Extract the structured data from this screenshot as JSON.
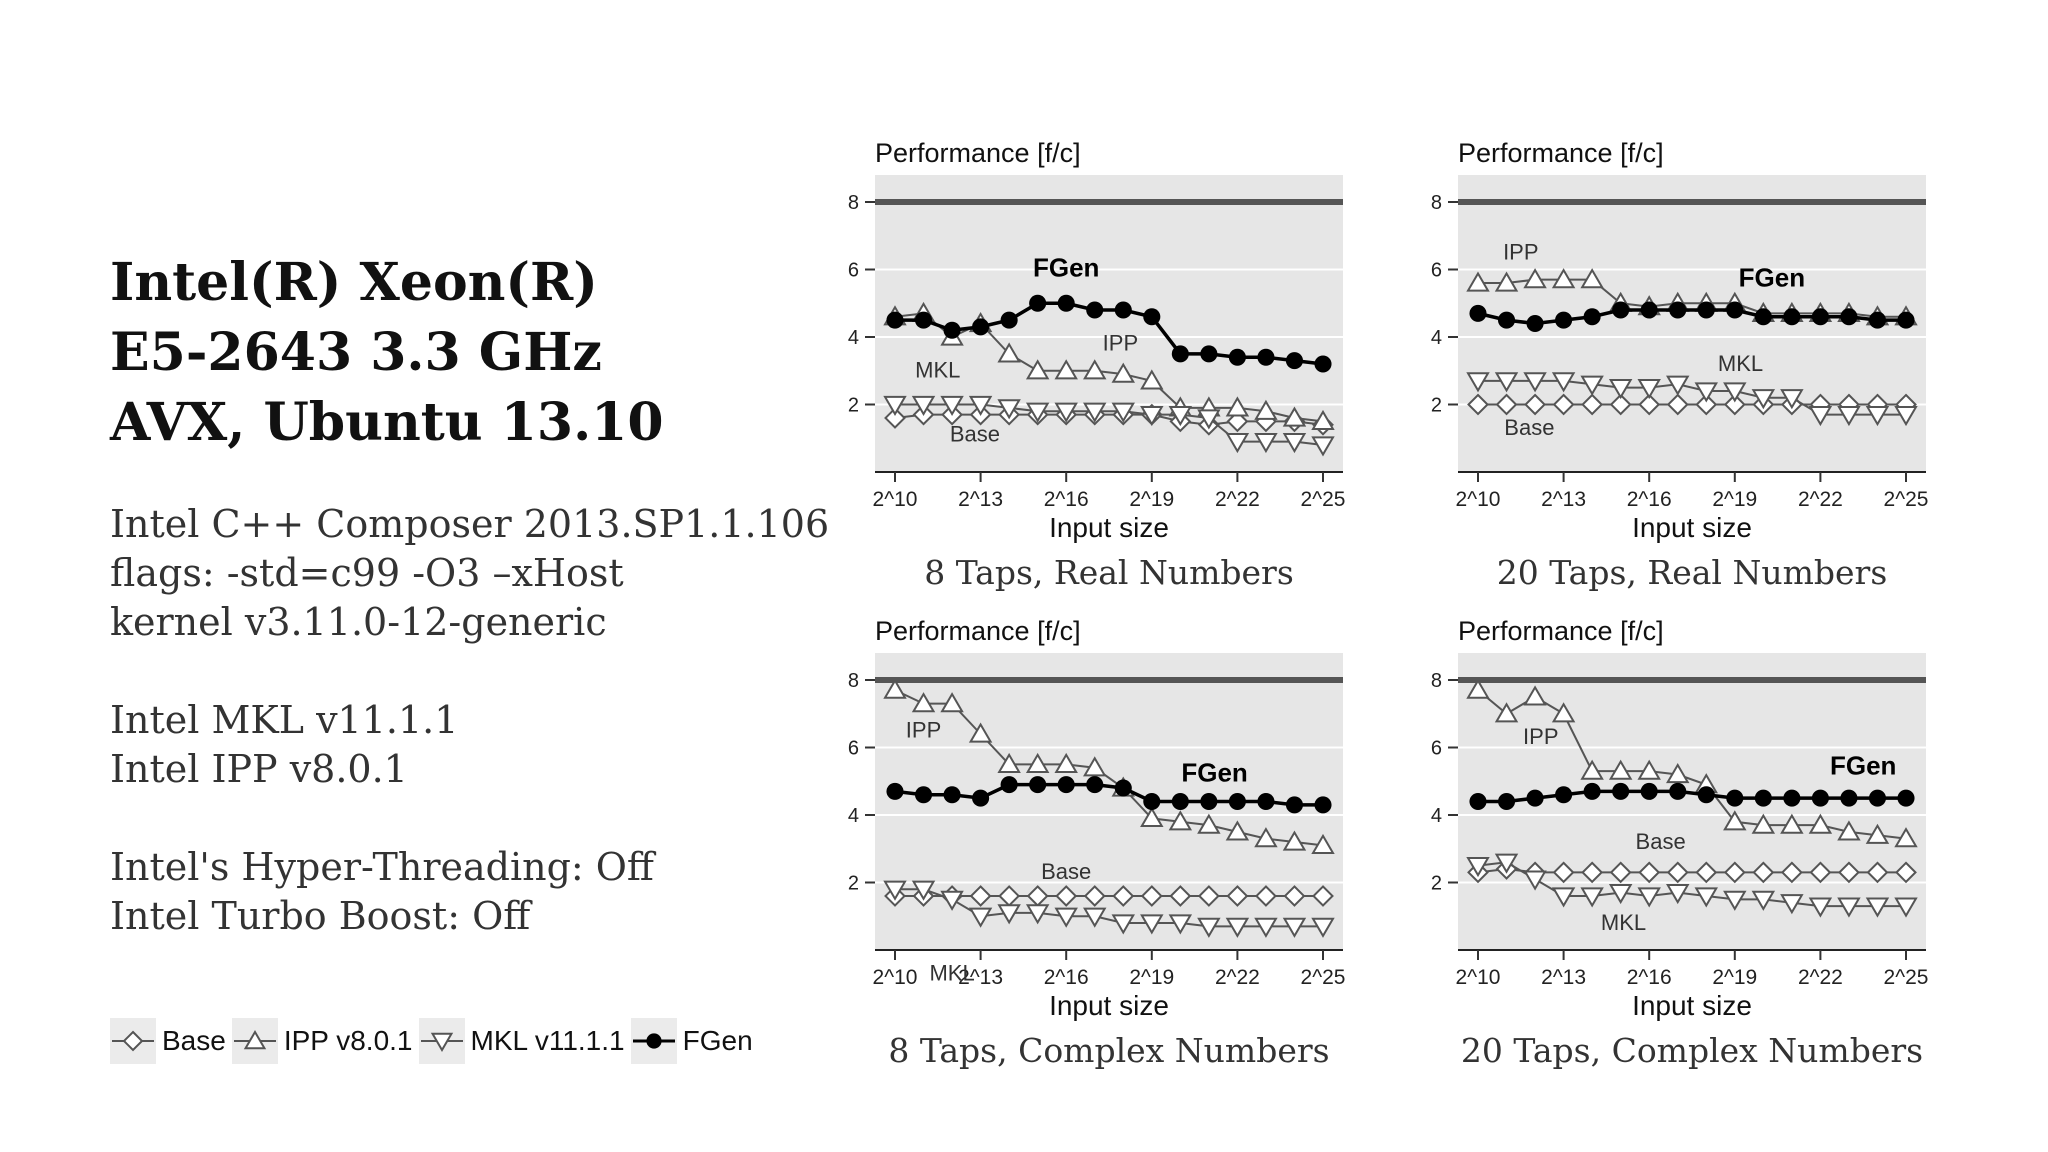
{
  "title_lines": [
    "Intel(R) Xeon(R)",
    "E5-2643 3.3 GHz",
    "AVX, Ubuntu 13.10"
  ],
  "info": {
    "compiler": "Intel C++ Composer 2013.SP1.1.106",
    "flags": "flags: -std=c99 -O3 –xHost",
    "kernel": "kernel v3.11.0-12-generic",
    "mkl": "Intel MKL v11.1.1",
    "ipp": "Intel IPP v8.0.1",
    "hyperthreading": "Intel's Hyper-Threading: Off",
    "turbo": "Intel Turbo Boost: Off"
  },
  "legend": [
    {
      "label": "Base",
      "marker": "diamond"
    },
    {
      "label": "IPP v8.0.1",
      "marker": "triangle-up"
    },
    {
      "label": "MKL v11.1.1",
      "marker": "triangle-down"
    },
    {
      "label": "FGen",
      "marker": "filled-circle"
    }
  ],
  "colors": {
    "panel_bg": "#e6e6e6",
    "grid": "#ffffff",
    "series_line": "#555555",
    "fgen": "#000000",
    "peak_line": "#555555"
  },
  "chart_data": [
    {
      "type": "line",
      "caption": "8 Taps, Real Numbers",
      "ylabel": "Performance [f/c]",
      "xlabel": "Input size",
      "x": [
        10,
        11,
        12,
        13,
        14,
        15,
        16,
        17,
        18,
        19,
        20,
        21,
        22,
        23,
        24,
        25
      ],
      "xticks": [
        "2^10",
        "2^13",
        "2^16",
        "2^19",
        "2^22",
        "2^25"
      ],
      "yticks": [
        2,
        4,
        6,
        8
      ],
      "ylim": [
        0,
        8.8
      ],
      "peak": 8,
      "series": [
        {
          "key": "Base",
          "marker": "diamond",
          "values": [
            1.6,
            1.7,
            1.7,
            1.7,
            1.7,
            1.7,
            1.7,
            1.7,
            1.7,
            1.7,
            1.5,
            1.4,
            1.5,
            1.5,
            1.5,
            1.4
          ]
        },
        {
          "key": "IPP",
          "marker": "triangle-up",
          "values": [
            4.6,
            4.7,
            4.0,
            4.4,
            3.5,
            3.0,
            3.0,
            3.0,
            2.9,
            2.7,
            1.9,
            1.9,
            1.9,
            1.8,
            1.6,
            1.5
          ]
        },
        {
          "key": "MKL",
          "marker": "triangle-down",
          "values": [
            2.0,
            2.0,
            2.0,
            2.0,
            1.9,
            1.8,
            1.8,
            1.8,
            1.8,
            1.7,
            1.7,
            1.6,
            0.9,
            0.9,
            0.9,
            0.8
          ]
        },
        {
          "key": "FGen",
          "marker": "filled-circle",
          "values": [
            4.5,
            4.5,
            4.2,
            4.3,
            4.5,
            5.0,
            5.0,
            4.8,
            4.8,
            4.6,
            3.5,
            3.5,
            3.4,
            3.4,
            3.3,
            3.2
          ]
        }
      ],
      "annotations": [
        {
          "text": "FGen",
          "x": 16,
          "y": 5.8,
          "bold": true
        },
        {
          "text": "IPP",
          "x": 17.9,
          "y": 3.6,
          "bold": false
        },
        {
          "text": "MKL",
          "x": 11.5,
          "y": 2.8,
          "bold": false
        },
        {
          "text": "Base",
          "x": 12.8,
          "y": 0.9,
          "bold": false
        }
      ]
    },
    {
      "type": "line",
      "caption": "20 Taps, Real Numbers",
      "ylabel": "Performance [f/c]",
      "xlabel": "Input size",
      "x": [
        10,
        11,
        12,
        13,
        14,
        15,
        16,
        17,
        18,
        19,
        20,
        21,
        22,
        23,
        24,
        25
      ],
      "xticks": [
        "2^10",
        "2^13",
        "2^16",
        "2^19",
        "2^22",
        "2^25"
      ],
      "yticks": [
        2,
        4,
        6,
        8
      ],
      "ylim": [
        0,
        8.8
      ],
      "peak": 8,
      "series": [
        {
          "key": "Base",
          "marker": "diamond",
          "values": [
            2.0,
            2.0,
            2.0,
            2.0,
            2.0,
            2.0,
            2.0,
            2.0,
            2.0,
            2.0,
            2.0,
            2.0,
            2.0,
            2.0,
            2.0,
            2.0
          ]
        },
        {
          "key": "IPP",
          "marker": "triangle-up",
          "values": [
            5.6,
            5.6,
            5.7,
            5.7,
            5.7,
            5.0,
            4.9,
            5.0,
            5.0,
            5.0,
            4.7,
            4.7,
            4.7,
            4.7,
            4.6,
            4.6
          ]
        },
        {
          "key": "MKL",
          "marker": "triangle-down",
          "values": [
            2.7,
            2.7,
            2.7,
            2.7,
            2.6,
            2.5,
            2.5,
            2.6,
            2.4,
            2.4,
            2.2,
            2.2,
            1.7,
            1.7,
            1.7,
            1.7
          ]
        },
        {
          "key": "FGen",
          "marker": "filled-circle",
          "values": [
            4.7,
            4.5,
            4.4,
            4.5,
            4.6,
            4.8,
            4.8,
            4.8,
            4.8,
            4.8,
            4.6,
            4.6,
            4.6,
            4.6,
            4.5,
            4.5
          ]
        }
      ],
      "annotations": [
        {
          "text": "IPP",
          "x": 11.5,
          "y": 6.3,
          "bold": false
        },
        {
          "text": "FGen",
          "x": 20.3,
          "y": 5.5,
          "bold": true
        },
        {
          "text": "MKL",
          "x": 19.2,
          "y": 3.0,
          "bold": false
        },
        {
          "text": "Base",
          "x": 11.8,
          "y": 1.1,
          "bold": false
        }
      ]
    },
    {
      "type": "line",
      "caption": "8 Taps, Complex Numbers",
      "ylabel": "Performance [f/c]",
      "xlabel": "Input size",
      "x": [
        10,
        11,
        12,
        13,
        14,
        15,
        16,
        17,
        18,
        19,
        20,
        21,
        22,
        23,
        24,
        25
      ],
      "xticks": [
        "2^10",
        "2^13",
        "2^16",
        "2^19",
        "2^22",
        "2^25"
      ],
      "yticks": [
        2,
        4,
        6,
        8
      ],
      "ylim": [
        0,
        8.8
      ],
      "peak": 8,
      "series": [
        {
          "key": "Base",
          "marker": "diamond",
          "values": [
            1.6,
            1.6,
            1.6,
            1.6,
            1.6,
            1.6,
            1.6,
            1.6,
            1.6,
            1.6,
            1.6,
            1.6,
            1.6,
            1.6,
            1.6,
            1.6
          ]
        },
        {
          "key": "IPP",
          "marker": "triangle-up",
          "values": [
            7.7,
            7.3,
            7.3,
            6.4,
            5.5,
            5.5,
            5.5,
            5.4,
            4.8,
            3.9,
            3.8,
            3.7,
            3.5,
            3.3,
            3.2,
            3.1
          ]
        },
        {
          "key": "MKL",
          "marker": "triangle-down",
          "values": [
            1.8,
            1.8,
            1.5,
            1.0,
            1.1,
            1.1,
            1.0,
            1.0,
            0.8,
            0.8,
            0.8,
            0.7,
            0.7,
            0.7,
            0.7,
            0.7
          ]
        },
        {
          "key": "FGen",
          "marker": "filled-circle",
          "values": [
            4.7,
            4.6,
            4.6,
            4.5,
            4.9,
            4.9,
            4.9,
            4.9,
            4.8,
            4.4,
            4.4,
            4.4,
            4.4,
            4.4,
            4.3,
            4.3
          ]
        }
      ],
      "annotations": [
        {
          "text": "IPP",
          "x": 11,
          "y": 6.3,
          "bold": false
        },
        {
          "text": "FGen",
          "x": 21.2,
          "y": 5.0,
          "bold": true
        },
        {
          "text": "Base",
          "x": 16,
          "y": 2.1,
          "bold": false
        },
        {
          "text": "MKL",
          "x": 12,
          "y": -0.9,
          "bold": false
        }
      ]
    },
    {
      "type": "line",
      "caption": "20 Taps, Complex Numbers",
      "ylabel": "Performance [f/c]",
      "xlabel": "Input size",
      "x": [
        10,
        11,
        12,
        13,
        14,
        15,
        16,
        17,
        18,
        19,
        20,
        21,
        22,
        23,
        24,
        25
      ],
      "xticks": [
        "2^10",
        "2^13",
        "2^16",
        "2^19",
        "2^22",
        "2^25"
      ],
      "yticks": [
        2,
        4,
        6,
        8
      ],
      "ylim": [
        0,
        8.8
      ],
      "peak": 8,
      "series": [
        {
          "key": "Base",
          "marker": "diamond",
          "values": [
            2.3,
            2.4,
            2.3,
            2.3,
            2.3,
            2.3,
            2.3,
            2.3,
            2.3,
            2.3,
            2.3,
            2.3,
            2.3,
            2.3,
            2.3,
            2.3
          ]
        },
        {
          "key": "IPP",
          "marker": "triangle-up",
          "values": [
            7.7,
            7.0,
            7.5,
            7.0,
            5.3,
            5.3,
            5.3,
            5.2,
            4.9,
            3.8,
            3.7,
            3.7,
            3.7,
            3.5,
            3.4,
            3.3
          ]
        },
        {
          "key": "MKL",
          "marker": "triangle-down",
          "values": [
            2.5,
            2.6,
            2.1,
            1.6,
            1.6,
            1.7,
            1.6,
            1.7,
            1.6,
            1.5,
            1.5,
            1.4,
            1.3,
            1.3,
            1.3,
            1.3
          ]
        },
        {
          "key": "FGen",
          "marker": "filled-circle",
          "values": [
            4.4,
            4.4,
            4.5,
            4.6,
            4.7,
            4.7,
            4.7,
            4.7,
            4.6,
            4.5,
            4.5,
            4.5,
            4.5,
            4.5,
            4.5,
            4.5
          ]
        }
      ],
      "annotations": [
        {
          "text": "IPP",
          "x": 12.2,
          "y": 6.1,
          "bold": false
        },
        {
          "text": "FGen",
          "x": 23.5,
          "y": 5.2,
          "bold": true
        },
        {
          "text": "Base",
          "x": 16.4,
          "y": 3.0,
          "bold": false
        },
        {
          "text": "MKL",
          "x": 15.1,
          "y": 0.6,
          "bold": false
        }
      ]
    }
  ]
}
